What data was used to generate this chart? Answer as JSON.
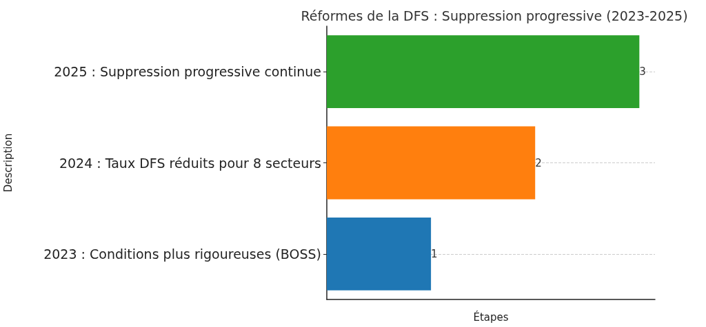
{
  "chart_data": {
    "type": "bar",
    "orientation": "horizontal",
    "title": "Réformes de la DFS : Suppression progressive (2023-2025)",
    "xlabel": "Étapes",
    "ylabel": "Description",
    "categories": [
      "2025 : Suppression progressive continue",
      "2024 : Taux DFS réduits pour 8 secteurs",
      "2023 : Conditions plus rigoureuses (BOSS)"
    ],
    "values": [
      3,
      2,
      1
    ],
    "colors": [
      "#2ca02c",
      "#ff7f0e",
      "#1f77b4"
    ],
    "xlim": [
      0,
      3.15
    ],
    "data_labels": true,
    "grid": "y",
    "tick_labels": "y"
  }
}
